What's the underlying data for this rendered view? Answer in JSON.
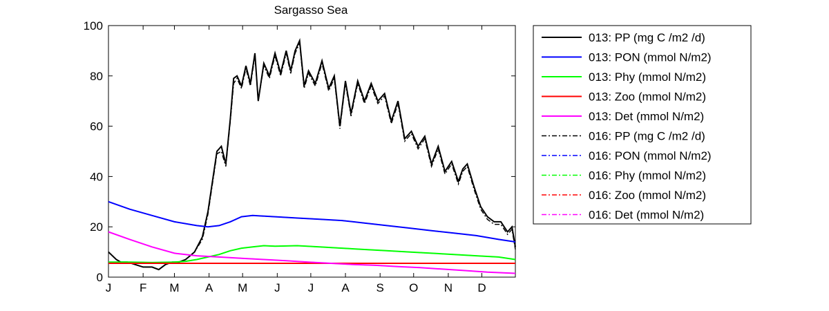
{
  "chart_data": {
    "type": "line",
    "title": "Sargasso Sea",
    "xlabel": "",
    "ylabel": "",
    "x_unit": "day of year",
    "xlim": [
      1,
      365
    ],
    "ylim": [
      0,
      100
    ],
    "y_ticks": [
      0,
      20,
      40,
      60,
      80,
      100
    ],
    "x_tick_labels": [
      "J",
      "F",
      "M",
      "A",
      "M",
      "J",
      "J",
      "A",
      "S",
      "O",
      "N",
      "D"
    ],
    "x_tick_days": [
      1,
      32,
      60,
      91,
      121,
      152,
      182,
      213,
      244,
      274,
      305,
      335
    ],
    "grid": false,
    "legend_placement": "outside right, top",
    "series": [
      {
        "name": "013: PP (mg C /m2 /d)",
        "color": "#000000",
        "style": "solid",
        "x": [
          1,
          8,
          12,
          18,
          25,
          32,
          40,
          46,
          52,
          58,
          64,
          70,
          78,
          85,
          90,
          94,
          98,
          102,
          106,
          110,
          113,
          116,
          120,
          124,
          128,
          132,
          135,
          140,
          145,
          150,
          155,
          160,
          164,
          168,
          172,
          176,
          180,
          186,
          192,
          198,
          203,
          208,
          213,
          218,
          224,
          230,
          236,
          242,
          248,
          254,
          260,
          266,
          272,
          278,
          284,
          290,
          296,
          302,
          308,
          314,
          318,
          322,
          328,
          334,
          340,
          346,
          352,
          358,
          362,
          365
        ],
        "y": [
          10,
          7,
          6,
          6,
          5,
          4,
          4,
          3,
          5,
          6,
          6,
          7,
          10,
          16,
          26,
          38,
          50,
          52,
          45,
          63,
          79,
          80,
          76,
          84,
          77,
          89,
          70,
          85,
          80,
          89,
          81,
          90,
          82,
          90,
          94,
          76,
          82,
          77,
          86,
          75,
          80,
          60,
          78,
          65,
          78,
          70,
          77,
          70,
          73,
          62,
          70,
          55,
          58,
          52,
          56,
          45,
          52,
          42,
          46,
          38,
          43,
          45,
          36,
          28,
          24,
          22,
          22,
          18,
          20,
          12
        ]
      },
      {
        "name": "013: PON (mmol N/m2)",
        "color": "#0000ff",
        "style": "solid",
        "x": [
          1,
          20,
          40,
          60,
          80,
          90,
          100,
          110,
          120,
          130,
          150,
          170,
          190,
          210,
          230,
          250,
          270,
          290,
          310,
          330,
          350,
          365
        ],
        "y": [
          30,
          27,
          24.5,
          22,
          20.5,
          20,
          20.5,
          22,
          24,
          24.5,
          24,
          23.5,
          23,
          22.5,
          21.5,
          20.5,
          19.5,
          18.5,
          17.5,
          16.5,
          15,
          14
        ]
      },
      {
        "name": "013: Phy (mmol N/m2)",
        "color": "#00ff00",
        "style": "solid",
        "x": [
          1,
          20,
          40,
          60,
          70,
          80,
          90,
          100,
          110,
          120,
          130,
          140,
          150,
          170,
          190,
          210,
          230,
          250,
          270,
          290,
          310,
          330,
          350,
          365
        ],
        "y": [
          6,
          6,
          5.8,
          6,
          6.3,
          7,
          8,
          9,
          10.5,
          11.5,
          12,
          12.5,
          12.3,
          12.5,
          12,
          11.5,
          11,
          10.5,
          10,
          9.5,
          9,
          8.5,
          8,
          7
        ]
      },
      {
        "name": "013: Zoo (mmol N/m2)",
        "color": "#ff0000",
        "style": "solid",
        "x": [
          1,
          365
        ],
        "y": [
          5.5,
          5.5
        ]
      },
      {
        "name": "013: Det (mmol N/m2)",
        "color": "#ff00ff",
        "style": "solid",
        "x": [
          1,
          20,
          40,
          60,
          80,
          100,
          120,
          140,
          160,
          180,
          200,
          220,
          240,
          260,
          280,
          300,
          320,
          340,
          365
        ],
        "y": [
          18,
          15,
          12,
          9.5,
          8.5,
          8,
          7.5,
          7,
          6.5,
          6,
          5.5,
          5,
          4.7,
          4.2,
          3.8,
          3.2,
          2.6,
          2,
          1.5
        ]
      },
      {
        "name": "016: PP (mg C /m2 /d)",
        "color": "#000000",
        "style": "dashdot",
        "x": [
          1,
          8,
          12,
          18,
          25,
          32,
          40,
          46,
          52,
          58,
          64,
          70,
          78,
          85,
          90,
          94,
          98,
          102,
          106,
          110,
          113,
          116,
          120,
          124,
          128,
          132,
          135,
          140,
          145,
          150,
          155,
          160,
          164,
          168,
          172,
          176,
          180,
          186,
          192,
          198,
          203,
          208,
          213,
          218,
          224,
          230,
          236,
          242,
          248,
          254,
          260,
          266,
          272,
          278,
          284,
          290,
          296,
          302,
          308,
          314,
          318,
          322,
          328,
          334,
          340,
          346,
          352,
          358,
          362,
          365
        ],
        "y": [
          10,
          7,
          6,
          6,
          5,
          4,
          4,
          3,
          5,
          6,
          6,
          7,
          10,
          15,
          25,
          37,
          49,
          50,
          44,
          62,
          77,
          79,
          75,
          83,
          76,
          88,
          70,
          84,
          79,
          88,
          80,
          89,
          81,
          89,
          93,
          75,
          81,
          76,
          85,
          74,
          79,
          59,
          77,
          64,
          77,
          69,
          76,
          69,
          72,
          61,
          69,
          54,
          57,
          51,
          55,
          44,
          51,
          41,
          45,
          37,
          42,
          44,
          35,
          27,
          23,
          21,
          21,
          17,
          19,
          11
        ]
      },
      {
        "name": "016: PON (mmol N/m2)",
        "color": "#0000ff",
        "style": "dashdot",
        "x": [
          1,
          20,
          40,
          60,
          80,
          90,
          100,
          110,
          120,
          130,
          150,
          170,
          190,
          210,
          230,
          250,
          270,
          290,
          310,
          330,
          350,
          365
        ],
        "y": [
          30,
          27,
          24.5,
          22,
          20.5,
          20,
          20.5,
          22,
          24,
          24.5,
          24,
          23.5,
          23,
          22.5,
          21.5,
          20.5,
          19.5,
          18.5,
          17.5,
          16.5,
          15,
          14
        ]
      },
      {
        "name": "016: Phy (mmol N/m2)",
        "color": "#00ff00",
        "style": "dashdot",
        "x": [
          1,
          20,
          40,
          60,
          70,
          80,
          90,
          100,
          110,
          120,
          130,
          140,
          150,
          170,
          190,
          210,
          230,
          250,
          270,
          290,
          310,
          330,
          350,
          365
        ],
        "y": [
          6,
          6,
          5.8,
          6,
          6.3,
          7,
          8,
          9,
          10.5,
          11.5,
          12,
          12.5,
          12.3,
          12.5,
          12,
          11.5,
          11,
          10.5,
          10,
          9.5,
          9,
          8.5,
          8,
          7
        ]
      },
      {
        "name": "016: Zoo (mmol N/m2)",
        "color": "#ff0000",
        "style": "dashdot",
        "x": [
          1,
          365
        ],
        "y": [
          5.5,
          5.5
        ]
      },
      {
        "name": "016: Det (mmol N/m2)",
        "color": "#ff00ff",
        "style": "dashdot",
        "x": [
          1,
          20,
          40,
          60,
          80,
          100,
          120,
          140,
          160,
          180,
          200,
          220,
          240,
          260,
          280,
          300,
          320,
          340,
          365
        ],
        "y": [
          18,
          15,
          12,
          9.5,
          8.5,
          8,
          7.5,
          7,
          6.5,
          6,
          5.5,
          5,
          4.7,
          4.2,
          3.8,
          3.2,
          2.6,
          2,
          1.5
        ]
      }
    ]
  }
}
